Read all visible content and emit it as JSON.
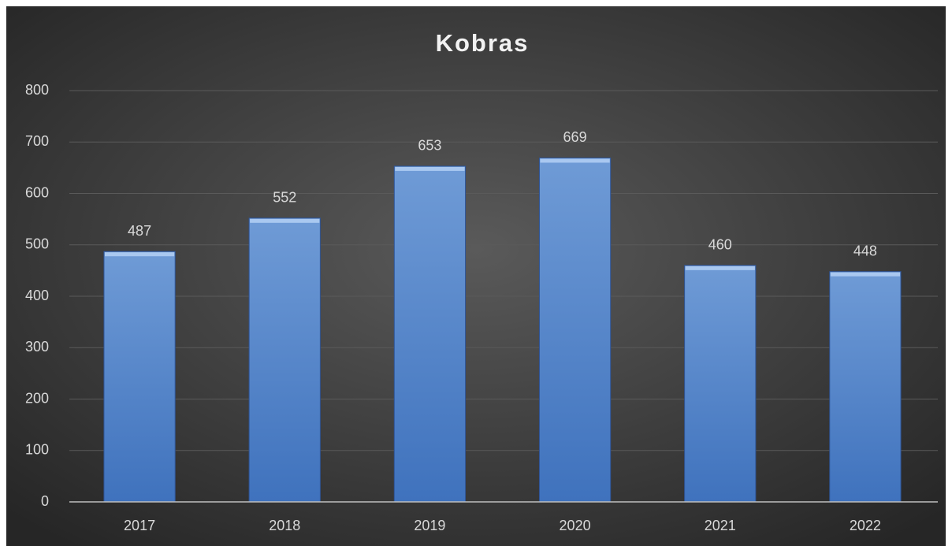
{
  "chart_data": {
    "type": "bar",
    "title": "Kobras",
    "categories": [
      "2017",
      "2018",
      "2019",
      "2020",
      "2021",
      "2022"
    ],
    "values": [
      487,
      552,
      653,
      669,
      460,
      448
    ],
    "color": "#4f81c7",
    "ylim": [
      0,
      800
    ],
    "yticks": [
      0,
      100,
      200,
      300,
      400,
      500,
      600,
      700,
      800
    ],
    "grid": true
  }
}
